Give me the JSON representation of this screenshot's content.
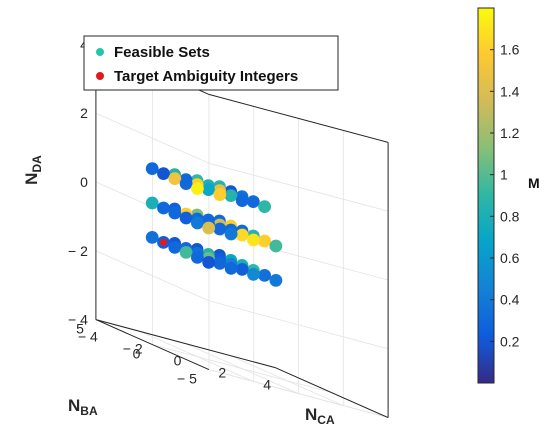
{
  "chart_data": {
    "type": "scatter",
    "projection": "3d",
    "axes": {
      "x": {
        "label": "N",
        "label_sub": "CA",
        "ticks": [
          -4,
          -2,
          0,
          2,
          4
        ],
        "tick_labels": [
          "− 4",
          "− 2",
          "0",
          "2",
          "4"
        ],
        "lim": [
          -4,
          4
        ]
      },
      "y": {
        "label": "N",
        "label_sub": "BA",
        "ticks": [
          -5,
          0,
          5
        ],
        "tick_labels": [
          "− 5",
          "0",
          "5"
        ],
        "lim": [
          -5,
          5
        ]
      },
      "z": {
        "label": "N",
        "label_sub": "DA",
        "ticks": [
          -4,
          -2,
          0,
          2,
          4
        ],
        "tick_labels": [
          "− 4",
          "− 2",
          "0",
          "2",
          "4"
        ],
        "lim": [
          -4,
          4
        ]
      }
    },
    "grid": true,
    "legend": {
      "placement": "top-left",
      "entries": [
        {
          "label": "Feasible Sets",
          "color": "#21c7a8"
        },
        {
          "label": "Target Ambiguity Integers",
          "color": "#e01b1b"
        }
      ]
    },
    "colorbar": {
      "label": "M",
      "min": 0.0,
      "max": 1.8,
      "ticks": [
        0.2,
        0.4,
        0.6,
        0.8,
        1,
        1.2,
        1.4,
        1.6
      ],
      "colormap": "parula"
    },
    "series": [
      {
        "name": "Feasible Sets",
        "points": [
          {
            "x": -3,
            "y": 2,
            "z": -1,
            "c": 0.35
          },
          {
            "x": -3,
            "y": 1,
            "z": -1,
            "c": 0.25
          },
          {
            "x": -3,
            "y": 0,
            "z": -1,
            "c": 0.3
          },
          {
            "x": -3,
            "y": -1,
            "z": -1,
            "c": 0.95
          },
          {
            "x": -3,
            "y": -2,
            "z": -1,
            "c": 0.3
          },
          {
            "x": -3,
            "y": -3,
            "z": -1,
            "c": 0.2
          },
          {
            "x": -2,
            "y": 2,
            "z": -1,
            "c": 0.2
          },
          {
            "x": -2,
            "y": 1,
            "z": -1,
            "c": 0.3
          },
          {
            "x": -2,
            "y": 0,
            "z": -1,
            "c": 0.35
          },
          {
            "x": -2,
            "y": -1,
            "z": -1,
            "c": 1.05
          },
          {
            "x": -2,
            "y": -2,
            "z": -1,
            "c": 0.3
          },
          {
            "x": -2,
            "y": -3,
            "z": -1,
            "c": 0.3
          },
          {
            "x": -1,
            "y": 2,
            "z": -1,
            "c": 0.2
          },
          {
            "x": -1,
            "y": 1,
            "z": -1,
            "c": 0.85
          },
          {
            "x": -1,
            "y": 0,
            "z": -1,
            "c": 0.25
          },
          {
            "x": -1,
            "y": -1,
            "z": -1,
            "c": 0.45
          },
          {
            "x": -1,
            "y": -2,
            "z": -1,
            "c": 0.25
          },
          {
            "x": -1,
            "y": -3,
            "z": -1,
            "c": 0.5
          },
          {
            "x": 0,
            "y": 2,
            "z": -1,
            "c": 0.2
          },
          {
            "x": 0,
            "y": 1,
            "z": -1,
            "c": 0.7
          },
          {
            "x": 0,
            "y": 0,
            "z": -1,
            "c": 0.8
          },
          {
            "x": 0,
            "y": -1,
            "z": -1,
            "c": 0.9
          },
          {
            "x": 0,
            "y": -2,
            "z": -1,
            "c": 0.35
          },
          {
            "x": 0,
            "y": -3,
            "z": -1,
            "c": 0.4
          },
          {
            "x": -3,
            "y": 2,
            "z": 0,
            "c": 0.8
          },
          {
            "x": -3,
            "y": 1,
            "z": 0,
            "c": 0.3
          },
          {
            "x": -3,
            "y": 0,
            "z": 0,
            "c": 0.3
          },
          {
            "x": -3,
            "y": -1,
            "z": 0,
            "c": 0.25
          },
          {
            "x": -3,
            "y": -2,
            "z": 0,
            "c": 0.4
          },
          {
            "x": -3,
            "y": -3,
            "z": 0,
            "c": 1.4
          },
          {
            "x": -2,
            "y": 2,
            "z": 0,
            "c": 0.25
          },
          {
            "x": -2,
            "y": 1,
            "z": 0,
            "c": 1.6
          },
          {
            "x": -2,
            "y": 0,
            "z": 0,
            "c": 0.3
          },
          {
            "x": -2,
            "y": -1,
            "z": 0,
            "c": 0.3
          },
          {
            "x": -2,
            "y": -2,
            "z": 0,
            "c": 0.3
          },
          {
            "x": -2,
            "y": -3,
            "z": 0,
            "c": 0.4
          },
          {
            "x": -1,
            "y": 2,
            "z": 0,
            "c": 1.1
          },
          {
            "x": -1,
            "y": 1,
            "z": 0,
            "c": 0.3
          },
          {
            "x": -1,
            "y": 0,
            "z": 0,
            "c": 1.35
          },
          {
            "x": -1,
            "y": -1,
            "z": 0,
            "c": 0.3
          },
          {
            "x": -1,
            "y": -2,
            "z": 0,
            "c": 1.65
          },
          {
            "x": -1,
            "y": -3,
            "z": 0,
            "c": 1.7
          },
          {
            "x": 0,
            "y": 2,
            "z": 0,
            "c": 0.3
          },
          {
            "x": 0,
            "y": 1,
            "z": 0,
            "c": 1.6
          },
          {
            "x": 0,
            "y": 0,
            "z": 0,
            "c": 0.3
          },
          {
            "x": 0,
            "y": -1,
            "z": 0,
            "c": 0.85
          },
          {
            "x": 0,
            "y": -2,
            "z": 0,
            "c": 1.6
          },
          {
            "x": 0,
            "y": -3,
            "z": 0,
            "c": 0.95
          },
          {
            "x": -3,
            "y": 2,
            "z": 1,
            "c": 0.3
          },
          {
            "x": -3,
            "y": 1,
            "z": 1,
            "c": 0.2
          },
          {
            "x": -3,
            "y": 0,
            "z": 1,
            "c": 1.5
          },
          {
            "x": -3,
            "y": -1,
            "z": 1,
            "c": 0.3
          },
          {
            "x": -3,
            "y": -2,
            "z": 1,
            "c": 1.75
          },
          {
            "x": -2,
            "y": 2,
            "z": 1,
            "c": 0.85
          },
          {
            "x": -2,
            "y": 1,
            "z": 1,
            "c": 0.3
          },
          {
            "x": -2,
            "y": 0,
            "z": 1,
            "c": 1.6
          },
          {
            "x": -2,
            "y": -1,
            "z": 1,
            "c": 0.7
          },
          {
            "x": -2,
            "y": -2,
            "z": 1,
            "c": 1.6
          },
          {
            "x": -1,
            "y": 2,
            "z": 1,
            "c": 0.9
          },
          {
            "x": -1,
            "y": 1,
            "z": 1,
            "c": 0.8
          },
          {
            "x": -1,
            "y": 0,
            "z": 1,
            "c": 1.45
          },
          {
            "x": -1,
            "y": -1,
            "z": 1,
            "c": 0.85
          },
          {
            "x": -1,
            "y": -2,
            "z": 1,
            "c": 0.3
          },
          {
            "x": 0,
            "y": 2,
            "z": 1,
            "c": 0.85
          },
          {
            "x": 0,
            "y": 1,
            "z": 1,
            "c": 0.2
          },
          {
            "x": 0,
            "y": 0,
            "z": 1,
            "c": 0.35
          },
          {
            "x": 0,
            "y": -1,
            "z": 1,
            "c": 0.3
          },
          {
            "x": 0,
            "y": -2,
            "z": 1,
            "c": 0.9
          }
        ]
      },
      {
        "name": "Target Ambiguity Integers",
        "points": [
          {
            "x": -3,
            "y": 1,
            "z": -1
          }
        ],
        "color": "#e01b1b"
      }
    ]
  }
}
